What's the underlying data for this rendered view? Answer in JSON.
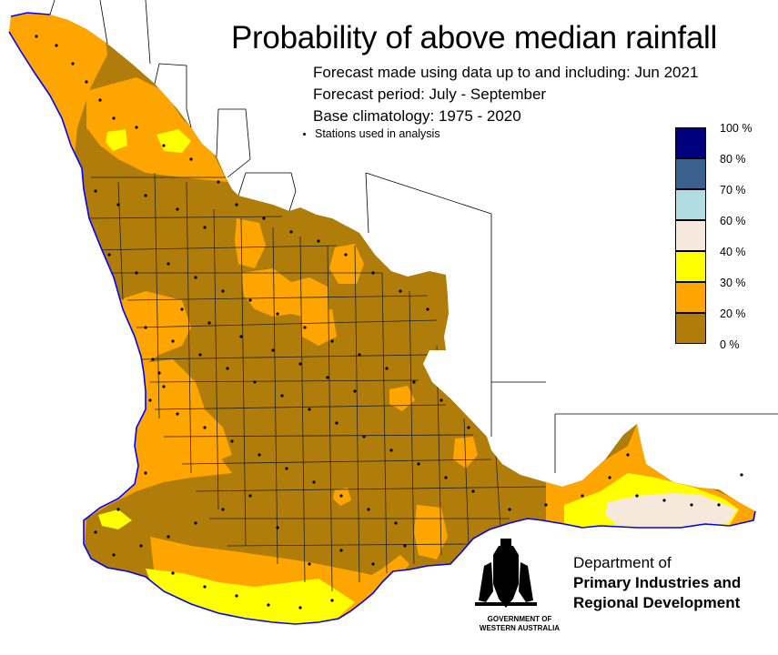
{
  "title": "Probability of above median rainfall",
  "forecast_made": "Forecast made using data up to and including: Jun 2021",
  "forecast_period": "Forecast period: July - September",
  "base_climatology": "Base climatology: 1975 - 2020",
  "stations_label": "Stations used in analysis",
  "legend": {
    "labels": [
      "100 %",
      "80 %",
      "70 %",
      "60 %",
      "40 %",
      "30 %",
      "20 %",
      "0 %"
    ],
    "bins": [
      {
        "range": "80-100 %",
        "color": "#00007f"
      },
      {
        "range": "70-80 %",
        "color": "#3a6190"
      },
      {
        "range": "60-70 %",
        "color": "#b0dce2"
      },
      {
        "range": "40-60 %",
        "color": "#f6e9dc"
      },
      {
        "range": "30-40 %",
        "color": "#ffff00"
      },
      {
        "range": "20-30 %",
        "color": "#ffa500"
      },
      {
        "range": "0-20 %",
        "color": "#b07d0b"
      }
    ]
  },
  "colors": {
    "p0_20": "#b07d0b",
    "p20_30": "#ffa500",
    "p30_40": "#ffff00",
    "p40_60": "#f6e9dc",
    "coastline": "#0000ff"
  },
  "department": {
    "line1": "Department of",
    "line2": "Primary Industries and",
    "line3": "Regional Development"
  },
  "government": {
    "line1": "GOVERNMENT OF",
    "line2": "WESTERN AUSTRALIA"
  }
}
